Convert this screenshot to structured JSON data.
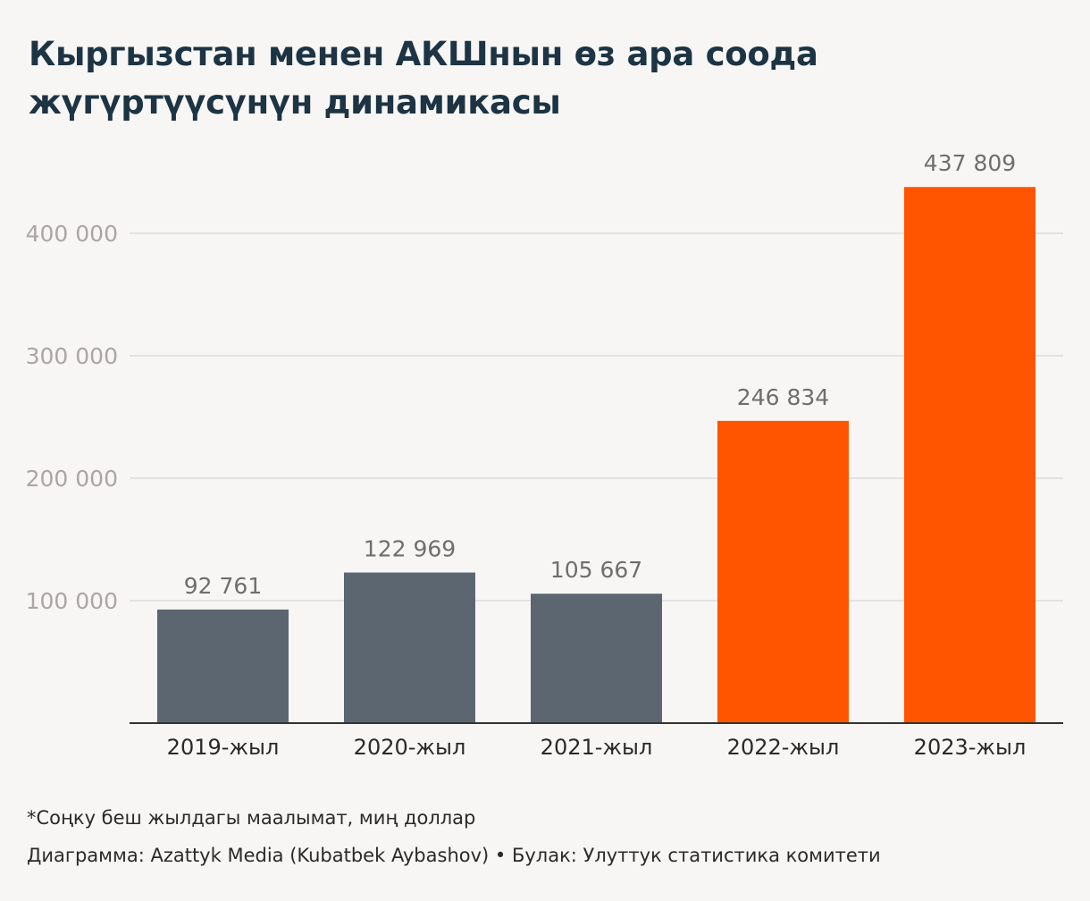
{
  "chart_data": {
    "type": "bar",
    "title": "Кыргызстан менен АКШнын өз ара соода жүгүртүүсүнүн динамикасы",
    "categories": [
      "2019-жыл",
      "2020-жыл",
      "2021-жыл",
      "2022-жыл",
      "2023-жыл"
    ],
    "values": [
      92761,
      122969,
      105667,
      246834,
      437809
    ],
    "value_labels": [
      "92 761",
      "122 969",
      "105 667",
      "246 834",
      "437 809"
    ],
    "bar_colors": [
      "#5b6670",
      "#5b6670",
      "#5b6670",
      "#ff5500",
      "#ff5500"
    ],
    "y_ticks": [
      100000,
      200000,
      300000,
      400000
    ],
    "y_tick_labels": [
      "100 000",
      "200 000",
      "300 000",
      "400 000"
    ],
    "ylim": [
      0,
      480000
    ],
    "grid": true,
    "xlabel": "",
    "ylabel": ""
  },
  "footer": {
    "note": "*Соңку беш жылдагы маалымат, миң доллар",
    "credits": "Диаграмма: Azattyk Media (Kubatbek Aybashov) • Булак: Улуттук статистика комитети"
  },
  "colors": {
    "background": "#f8f6f5",
    "title": "#1c3443",
    "gray_bar": "#5b6670",
    "accent_bar": "#ff5500",
    "grid": "#dcdcdc",
    "axis_tick_text": "#a9a6a3",
    "value_label_text": "#6e6e6e"
  }
}
